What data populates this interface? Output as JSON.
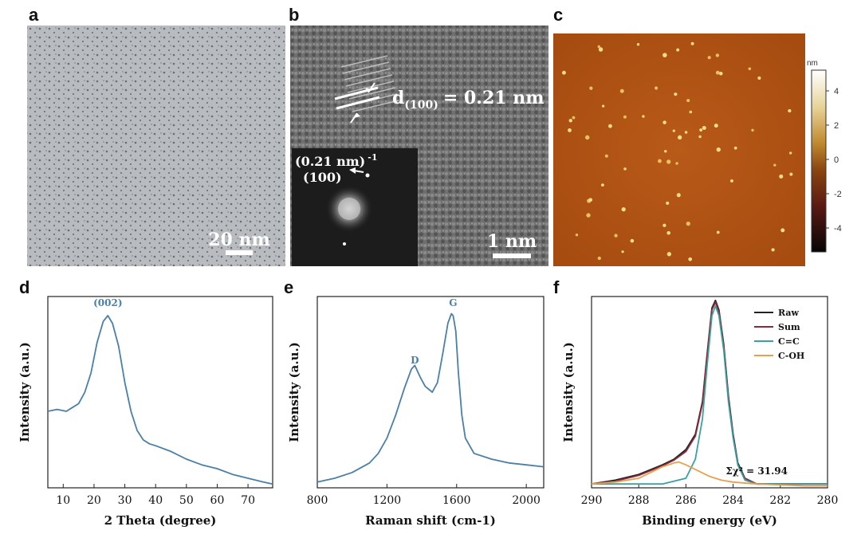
{
  "panels": {
    "a": {
      "letter": "a",
      "scalebar_label": "20 nm"
    },
    "b": {
      "letter": "b",
      "d_spacing_label": "d(100) = 0.21 nm",
      "d_main": "d",
      "d_sub": "(100)",
      "d_value": "= 0.21 nm",
      "fft_label_1": "(0.21 nm)",
      "fft_label_1_sup": "-1",
      "fft_label_2": "(100)",
      "scalebar_label": "1 nm"
    },
    "c": {
      "letter": "c",
      "colorbar_unit": "nm",
      "colorbar_ticks": [
        "4",
        "2",
        "0",
        "-2",
        "-4"
      ]
    },
    "d": {
      "letter": "d"
    },
    "e": {
      "letter": "e"
    },
    "f": {
      "letter": "f"
    }
  },
  "chart_data": [
    {
      "type": "line",
      "panel": "d",
      "title": "",
      "xlabel": "2 Theta (degree)",
      "ylabel": "Intensity (a.u.)",
      "xlim": [
        5,
        78
      ],
      "ylim": [
        0,
        1
      ],
      "xticks": [
        10,
        20,
        30,
        40,
        50,
        60,
        70
      ],
      "annotations": [
        {
          "text": "(002)",
          "x": 24.5,
          "y": 0.95
        }
      ],
      "series": [
        {
          "name": "XRD",
          "color": "#4a7fa8",
          "x": [
            5,
            8,
            11,
            13,
            15,
            17,
            19,
            21,
            23,
            24.5,
            26,
            28,
            30,
            32,
            34,
            36,
            38,
            40,
            45,
            50,
            55,
            60,
            65,
            70,
            75,
            78
          ],
          "y": [
            0.4,
            0.41,
            0.4,
            0.42,
            0.44,
            0.5,
            0.6,
            0.76,
            0.87,
            0.9,
            0.86,
            0.74,
            0.55,
            0.4,
            0.3,
            0.25,
            0.23,
            0.22,
            0.19,
            0.15,
            0.12,
            0.1,
            0.07,
            0.05,
            0.03,
            0.02
          ]
        }
      ]
    },
    {
      "type": "line",
      "panel": "e",
      "title": "",
      "xlabel": "Raman shift (cm-1)",
      "ylabel": "Intensity (a.u.)",
      "xlim": [
        800,
        2100
      ],
      "ylim": [
        0,
        1
      ],
      "xticks": [
        800,
        1200,
        1600,
        2000
      ],
      "annotations": [
        {
          "text": "D",
          "x": 1360,
          "y": 0.65
        },
        {
          "text": "G",
          "x": 1580,
          "y": 0.95
        }
      ],
      "series": [
        {
          "name": "Raman",
          "color": "#4a7fa8",
          "x": [
            800,
            850,
            900,
            1000,
            1100,
            1150,
            1200,
            1250,
            1300,
            1340,
            1360,
            1390,
            1420,
            1460,
            1490,
            1520,
            1550,
            1570,
            1580,
            1595,
            1610,
            1630,
            1650,
            1700,
            1800,
            1900,
            2000,
            2100
          ],
          "y": [
            0.03,
            0.04,
            0.05,
            0.08,
            0.13,
            0.18,
            0.26,
            0.38,
            0.52,
            0.62,
            0.64,
            0.58,
            0.53,
            0.5,
            0.55,
            0.7,
            0.86,
            0.91,
            0.9,
            0.82,
            0.6,
            0.38,
            0.26,
            0.18,
            0.15,
            0.13,
            0.12,
            0.11
          ]
        }
      ]
    },
    {
      "type": "line",
      "panel": "f",
      "title": "",
      "xlabel": "Binding energy (eV)",
      "ylabel": "Intensity (a.u.)",
      "xlim": [
        290,
        280
      ],
      "ylim": [
        0,
        1
      ],
      "xticks": [
        290,
        288,
        286,
        284,
        282,
        280
      ],
      "legend": [
        "Raw",
        "Sum",
        "C=C",
        "C-OH"
      ],
      "legend_position": "top-right",
      "annotations": [
        {
          "text": "Σχ² = 31.94",
          "x": 283.0,
          "y": 0.07
        }
      ],
      "series": [
        {
          "name": "Raw",
          "color": "#222222",
          "x": [
            290,
            289,
            288,
            287,
            286.5,
            286,
            285.6,
            285.3,
            285.1,
            284.9,
            284.75,
            284.6,
            284.4,
            284.2,
            284.0,
            283.8,
            283.5,
            283.0,
            282,
            281,
            280
          ],
          "y": [
            0.02,
            0.04,
            0.07,
            0.12,
            0.15,
            0.2,
            0.28,
            0.45,
            0.7,
            0.94,
            0.98,
            0.93,
            0.75,
            0.48,
            0.28,
            0.13,
            0.05,
            0.02,
            0.02,
            0.02,
            0.02
          ]
        },
        {
          "name": "Sum",
          "color": "#8b2a3a",
          "x": [
            290,
            289,
            288,
            287,
            286.5,
            286,
            285.6,
            285.3,
            285.1,
            284.9,
            284.75,
            284.6,
            284.4,
            284.2,
            284.0,
            283.8,
            283.5,
            283.0,
            282,
            281,
            280
          ],
          "y": [
            0.02,
            0.035,
            0.065,
            0.115,
            0.145,
            0.19,
            0.27,
            0.44,
            0.69,
            0.93,
            0.97,
            0.92,
            0.74,
            0.47,
            0.27,
            0.12,
            0.05,
            0.02,
            0.02,
            0.02,
            0.02
          ]
        },
        {
          "name": "C=C",
          "color": "#3aa0a0",
          "x": [
            290,
            288,
            287,
            286,
            285.6,
            285.3,
            285.1,
            284.9,
            284.75,
            284.6,
            284.4,
            284.2,
            284.0,
            283.8,
            283.5,
            283.0,
            282,
            280
          ],
          "y": [
            0.02,
            0.02,
            0.02,
            0.05,
            0.15,
            0.36,
            0.64,
            0.9,
            0.95,
            0.9,
            0.72,
            0.45,
            0.26,
            0.12,
            0.04,
            0.02,
            0.02,
            0.02
          ]
        },
        {
          "name": "C-OH",
          "color": "#e8a050",
          "x": [
            290,
            289,
            288,
            287.5,
            287,
            286.5,
            286.3,
            286,
            285.5,
            285,
            284.5,
            284,
            283,
            282,
            281,
            280
          ],
          "y": [
            0.02,
            0.03,
            0.05,
            0.08,
            0.11,
            0.13,
            0.135,
            0.12,
            0.09,
            0.06,
            0.04,
            0.03,
            0.02,
            0.015,
            0.01,
            0.01
          ]
        }
      ]
    }
  ]
}
